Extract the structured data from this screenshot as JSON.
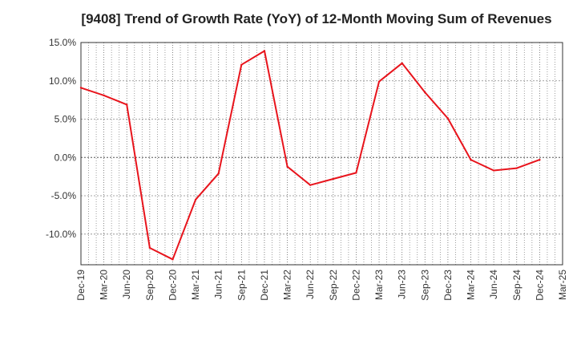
{
  "chart_data": {
    "type": "line",
    "title": "[9408]  Trend of Growth Rate (YoY) of 12-Month Moving Sum of Revenues",
    "xlabel": "",
    "ylabel": "",
    "x": [
      "Dec-19",
      "Mar-20",
      "Jun-20",
      "Sep-20",
      "Dec-20",
      "Mar-21",
      "Jun-21",
      "Sep-21",
      "Dec-21",
      "Mar-22",
      "Jun-22",
      "Sep-22",
      "Dec-22",
      "Mar-23",
      "Jun-23",
      "Sep-23",
      "Dec-23",
      "Mar-24",
      "Jun-24",
      "Sep-24",
      "Dec-24",
      "Mar-25"
    ],
    "ylim": [
      -14,
      15
    ],
    "yticks": [
      15,
      10,
      5,
      0,
      -5,
      -10
    ],
    "ytick_labels": [
      "15.0%",
      "10.0%",
      "5.0%",
      "0.0%",
      "-5.0%",
      "-10.0%"
    ],
    "grid": true,
    "legend": "none",
    "series": [
      {
        "color": "#e8141c",
        "values": [
          9.1,
          8.1,
          6.9,
          -11.8,
          -13.3,
          -5.5,
          -2.1,
          12.1,
          13.9,
          -1.2,
          -3.6,
          -2.8,
          -2.0,
          9.9,
          12.3,
          8.5,
          5.1,
          -0.3,
          -1.7,
          -1.4,
          -0.3,
          null
        ]
      }
    ]
  }
}
